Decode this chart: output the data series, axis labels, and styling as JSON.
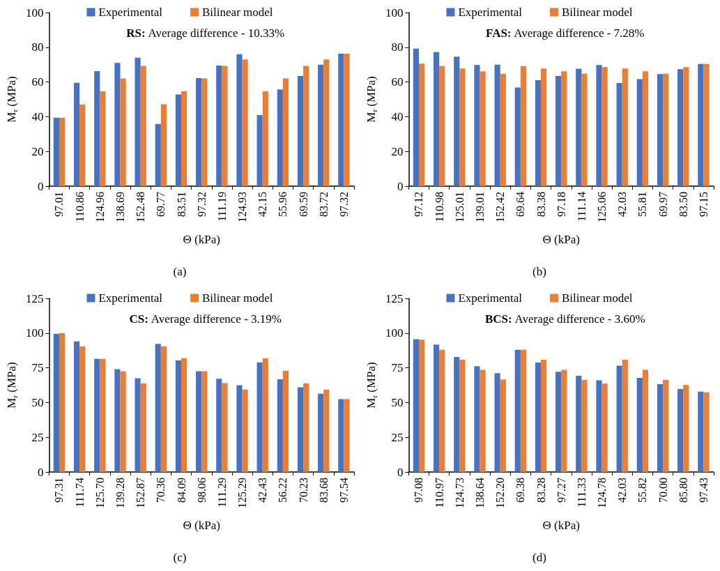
{
  "chart_data": [
    {
      "type": "bar",
      "categories": [
        "97.01",
        "110.86",
        "124.96",
        "138.69",
        "152.48",
        "69.77",
        "83.51",
        "97.32",
        "111.19",
        "124.93",
        "42.15",
        "55.96",
        "69.59",
        "83.72",
        "97.32"
      ],
      "series": [
        {
          "name": "Experimental",
          "color": "#4472c4",
          "values": [
            39.5,
            59.5,
            66.3,
            71,
            74,
            35.8,
            52.8,
            62.2,
            69.5,
            76,
            41,
            55.7,
            63.5,
            70,
            76.3
          ]
        },
        {
          "name": "Bilinear model",
          "color": "#ed7d31",
          "values": [
            39.5,
            47,
            54.6,
            62,
            69.3,
            47.2,
            54.6,
            62,
            69.3,
            73,
            54.6,
            62,
            69.3,
            73,
            76.3
          ]
        }
      ],
      "ylim": [
        0,
        100
      ],
      "yticks": [
        0,
        20,
        40,
        60,
        80,
        100
      ],
      "xlabel": "Θ (kPa)",
      "ylabel": "M$_{r}$ (MPa)",
      "legend": "top",
      "grid": false,
      "annotations": [
        "RS: Average difference - 10.33%",
        "(a)"
      ]
    },
    {
      "type": "bar",
      "categories": [
        "97.12",
        "110.98",
        "125.01",
        "139.01",
        "152.42",
        "69.64",
        "83.38",
        "97.18",
        "111.14",
        "125.06",
        "42.03",
        "55.81",
        "69.97",
        "83.50",
        "97.15"
      ],
      "series": [
        {
          "name": "Experimental",
          "color": "#4472c4",
          "values": [
            79.2,
            77.2,
            74.6,
            69.8,
            70,
            56.8,
            61,
            63.5,
            67.6,
            69.8,
            59.4,
            61.6,
            64.6,
            67.4,
            70.4
          ]
        },
        {
          "name": "Bilinear model",
          "color": "#ed7d31",
          "values": [
            70.6,
            69.2,
            67.8,
            66.2,
            64.8,
            69.2,
            67.8,
            66.2,
            64.8,
            68.6,
            67.8,
            66.2,
            64.8,
            68.6,
            70.4
          ]
        }
      ],
      "ylim": [
        0,
        100
      ],
      "yticks": [
        0,
        20,
        40,
        60,
        80,
        100
      ],
      "xlabel": "Θ (kPa)",
      "ylabel": "M$_{r}$ (MPa)",
      "legend": "top",
      "grid": false,
      "annotations": [
        "FAS: Average difference - 7.28%",
        "(b)"
      ]
    },
    {
      "type": "bar",
      "categories": [
        "97.31",
        "111.74",
        "125.70",
        "139.28",
        "152.87",
        "70.36",
        "84.09",
        "98.06",
        "111.29",
        "125.29",
        "42.43",
        "56.22",
        "70.23",
        "83.68",
        "97.54"
      ],
      "series": [
        {
          "name": "Experimental",
          "color": "#4472c4",
          "values": [
            99.5,
            94,
            81.5,
            74,
            67.5,
            92.3,
            80.3,
            72.5,
            67.2,
            62.5,
            79,
            66.8,
            61,
            56.3,
            52.5
          ]
        },
        {
          "name": "Bilinear model",
          "color": "#ed7d31",
          "values": [
            100,
            90.5,
            81.5,
            72.5,
            63.8,
            90.5,
            81.8,
            72.5,
            64,
            59.3,
            81.8,
            72.8,
            63.7,
            59.3,
            52.5
          ]
        }
      ],
      "ylim": [
        0,
        125
      ],
      "yticks": [
        0,
        25,
        50,
        75,
        100,
        125
      ],
      "xlabel": "Θ (kPa)",
      "ylabel": "M$_{r}$ (MPa)",
      "legend": "top",
      "grid": false,
      "annotations": [
        "CS: Average difference - 3.19%",
        "(c)"
      ]
    },
    {
      "type": "bar",
      "categories": [
        "97.08",
        "110.97",
        "124.73",
        "138.64",
        "152.20",
        "69.38",
        "83.28",
        "97.27",
        "111.33",
        "124.78",
        "42.03",
        "55.82",
        "70.00",
        "85.80",
        "97.43"
      ],
      "series": [
        {
          "name": "Experimental",
          "color": "#4472c4",
          "values": [
            95.6,
            91.8,
            82.8,
            76.2,
            71.2,
            88,
            78.8,
            72.2,
            69.3,
            66,
            76.6,
            67.8,
            63.2,
            59.8,
            57.8
          ]
        },
        {
          "name": "Bilinear model",
          "color": "#ed7d31",
          "values": [
            95.2,
            88,
            80.8,
            73.6,
            66.6,
            88,
            80.8,
            73.6,
            66.4,
            63.6,
            80.8,
            73.6,
            66.4,
            62.6,
            57.4
          ]
        }
      ],
      "ylim": [
        0,
        125
      ],
      "yticks": [
        0,
        25,
        50,
        75,
        100,
        125
      ],
      "xlabel": "Θ (kPa)",
      "ylabel": "M$_{r}$ (MPa)",
      "legend": "top",
      "grid": false,
      "annotations": [
        "BCS: Average difference - 3.60%",
        "(d)"
      ]
    }
  ]
}
